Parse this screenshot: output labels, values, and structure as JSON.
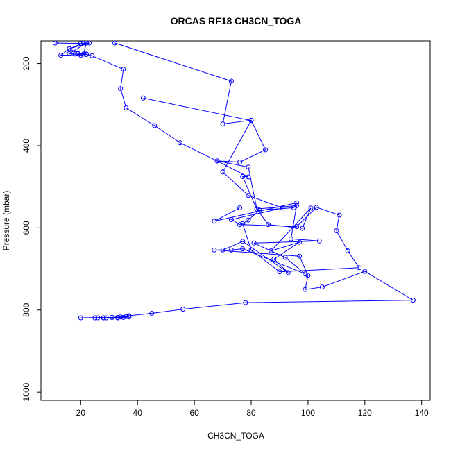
{
  "chart_data": {
    "type": "line",
    "title": "ORCAS RF18 CH3CN_TOGA",
    "xlabel": "CH3CN_TOGA",
    "ylabel": "Pressure (mbar)",
    "xlim": [
      6,
      143
    ],
    "ylim": [
      1020,
      145
    ],
    "y_reversed": true,
    "x_ticks": [
      20,
      40,
      60,
      80,
      100,
      120,
      140
    ],
    "y_ticks": [
      200,
      400,
      600,
      800,
      1000
    ],
    "grid": false,
    "line_color": "#0000ff",
    "marker": "open-circle",
    "series": [
      {
        "x": [
          32,
          73,
          70,
          80,
          85,
          76,
          68,
          79,
          77,
          82,
          86,
          98,
          101,
          87,
          97,
          88,
          93,
          77,
          70,
          67,
          97,
          100,
          99,
          105,
          120,
          137,
          78,
          56,
          45,
          37,
          34,
          31,
          28,
          25,
          20,
          31,
          36,
          37,
          35,
          33,
          29,
          26,
          28,
          31,
          33
        ],
        "y": [
          150,
          243,
          347,
          338,
          410,
          440,
          437,
          476,
          475,
          555,
          592,
          601,
          552,
          656,
          635,
          676,
          709,
          633,
          654,
          654,
          669,
          716,
          750,
          744,
          706,
          776,
          782,
          798,
          808,
          814,
          817,
          818,
          819,
          819,
          819,
          818,
          816,
          817,
          818,
          819,
          819,
          819,
          819,
          818,
          818
        ]
      },
      {
        "x": [
          42,
          80,
          70,
          79,
          91,
          73,
          76,
          96,
          103,
          111,
          110,
          114,
          118,
          90,
          80,
          77,
          79,
          83,
          95,
          96,
          67,
          76
        ],
        "y": [
          284,
          339,
          464,
          521,
          552,
          580,
          592,
          597,
          550,
          569,
          607,
          656,
          697,
          707,
          654,
          590,
          581,
          557,
          551,
          539,
          584,
          551
        ]
      },
      {
        "x": [
          21,
          16,
          13,
          22,
          24,
          35,
          34,
          36,
          46,
          55,
          68,
          79,
          82,
          96,
          94,
          104,
          81,
          92,
          99,
          77,
          73
        ],
        "y": [
          150,
          164,
          180,
          178,
          181,
          214,
          261,
          308,
          351,
          393,
          437,
          452,
          554,
          546,
          627,
          632,
          637,
          672,
          712,
          651,
          654
        ]
      },
      {
        "x": [
          11,
          20,
          23,
          16,
          19,
          21,
          22,
          16,
          18,
          20,
          22,
          19
        ],
        "y": [
          150,
          151,
          150,
          164,
          175,
          177,
          150,
          176,
          177,
          180,
          177,
          176
        ]
      }
    ]
  }
}
